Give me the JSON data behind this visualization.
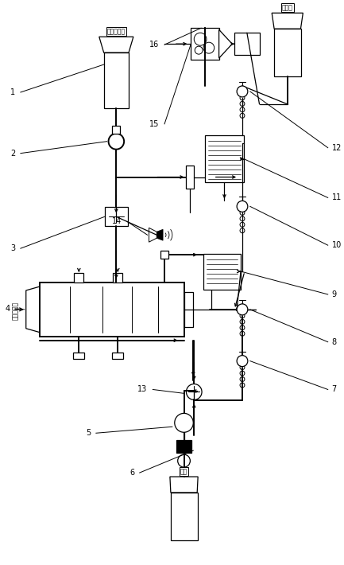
{
  "bg_color": "#ffffff",
  "alkali_text": "碱液储存罐",
  "water_text": "淡水箱",
  "exhaust_text": "船舶废气排",
  "alkali_bottom_text": "碱液"
}
